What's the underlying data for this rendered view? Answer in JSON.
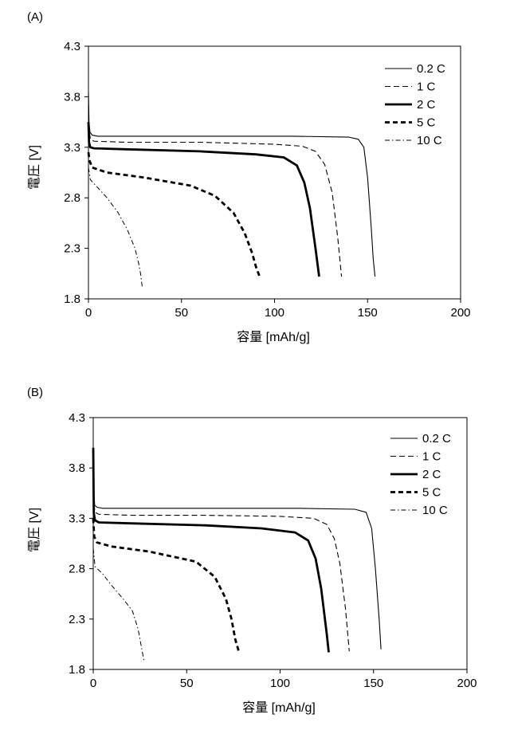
{
  "chart_data": [
    {
      "panel": "(A)",
      "type": "line",
      "xlabel": "容量 [mAh/g]",
      "ylabel": "電圧 [V]",
      "xlim": [
        0,
        200
      ],
      "ylim": [
        1.8,
        4.3
      ],
      "xticks": [
        "0",
        "50",
        "100",
        "150",
        "200"
      ],
      "yticks": [
        "1.8",
        "2.3",
        "2.8",
        "3.3",
        "3.8",
        "4.3"
      ],
      "grid": false,
      "legend_position": "top-right",
      "series": [
        {
          "name": "0.2 C",
          "style": "thin-solid",
          "x": [
            0,
            0.3,
            0.8,
            2,
            5,
            30,
            70,
            110,
            140,
            145,
            148,
            150,
            152,
            153,
            154
          ],
          "y": [
            3.85,
            3.55,
            3.45,
            3.42,
            3.41,
            3.41,
            3.41,
            3.41,
            3.4,
            3.38,
            3.3,
            3.0,
            2.5,
            2.2,
            2.02
          ]
        },
        {
          "name": "1 C",
          "style": "thin-dashed",
          "x": [
            0,
            0.3,
            1,
            3,
            20,
            60,
            100,
            115,
            122,
            127,
            131,
            134,
            136
          ],
          "y": [
            3.7,
            3.5,
            3.38,
            3.36,
            3.35,
            3.35,
            3.33,
            3.31,
            3.26,
            3.13,
            2.85,
            2.4,
            2.02
          ]
        },
        {
          "name": "2 C",
          "style": "bold-solid",
          "x": [
            0,
            0.3,
            1,
            3,
            20,
            60,
            90,
            105,
            112,
            116,
            119,
            122,
            124
          ],
          "y": [
            3.55,
            3.35,
            3.3,
            3.29,
            3.28,
            3.26,
            3.23,
            3.2,
            3.12,
            2.95,
            2.7,
            2.3,
            2.02
          ]
        },
        {
          "name": "5 C",
          "style": "bold-dashed",
          "x": [
            0,
            0.5,
            2,
            10,
            30,
            55,
            68,
            78,
            84,
            88,
            90,
            92
          ],
          "y": [
            3.25,
            3.17,
            3.1,
            3.05,
            3.0,
            2.92,
            2.82,
            2.65,
            2.45,
            2.25,
            2.12,
            2.02
          ]
        },
        {
          "name": "10 C",
          "style": "thin-dash-dot",
          "x": [
            0,
            1,
            5,
            10,
            16,
            21,
            25,
            27,
            28,
            29
          ],
          "y": [
            3.1,
            2.98,
            2.9,
            2.8,
            2.65,
            2.48,
            2.3,
            2.15,
            2.05,
            1.9
          ]
        }
      ]
    },
    {
      "panel": "(B)",
      "type": "line",
      "xlabel": "容量 [mAh/g]",
      "ylabel": "電圧 [V]",
      "xlim": [
        0,
        200
      ],
      "ylim": [
        1.8,
        4.3
      ],
      "xticks": [
        "0",
        "50",
        "100",
        "150",
        "200"
      ],
      "yticks": [
        "1.8",
        "2.3",
        "2.8",
        "3.3",
        "3.8",
        "4.3"
      ],
      "grid": false,
      "legend_position": "top-right",
      "series": [
        {
          "name": "0.2 C",
          "style": "thin-solid",
          "x": [
            0,
            0.3,
            0.8,
            2,
            5,
            30,
            70,
            110,
            140,
            146,
            149,
            151,
            153,
            154
          ],
          "y": [
            3.9,
            3.55,
            3.43,
            3.41,
            3.4,
            3.4,
            3.4,
            3.4,
            3.39,
            3.36,
            3.2,
            2.8,
            2.3,
            2.0
          ]
        },
        {
          "name": "1 C",
          "style": "thin-dashed",
          "x": [
            0,
            0.3,
            1,
            3,
            20,
            60,
            100,
            118,
            125,
            129,
            132,
            135,
            137
          ],
          "y": [
            3.7,
            3.45,
            3.36,
            3.34,
            3.33,
            3.33,
            3.32,
            3.3,
            3.24,
            3.1,
            2.85,
            2.4,
            1.98
          ]
        },
        {
          "name": "2 C",
          "style": "bold-solid",
          "x": [
            0,
            0.3,
            1,
            3,
            20,
            60,
            90,
            108,
            115,
            119,
            122,
            125,
            126
          ],
          "y": [
            4.0,
            3.35,
            3.28,
            3.26,
            3.25,
            3.23,
            3.2,
            3.16,
            3.08,
            2.9,
            2.6,
            2.15,
            1.97
          ]
        },
        {
          "name": "5 C",
          "style": "bold-dashed",
          "x": [
            0,
            0.5,
            2,
            10,
            30,
            55,
            65,
            71,
            74,
            76,
            78
          ],
          "y": [
            3.3,
            3.12,
            3.06,
            3.02,
            2.97,
            2.87,
            2.72,
            2.5,
            2.3,
            2.1,
            1.97
          ]
        },
        {
          "name": "10 C",
          "style": "thin-dash-dot",
          "x": [
            0,
            1,
            5,
            10,
            16,
            21,
            24,
            26,
            27,
            28
          ],
          "y": [
            3.0,
            2.82,
            2.75,
            2.63,
            2.5,
            2.38,
            2.2,
            2.0,
            1.9,
            1.88
          ]
        }
      ]
    }
  ]
}
